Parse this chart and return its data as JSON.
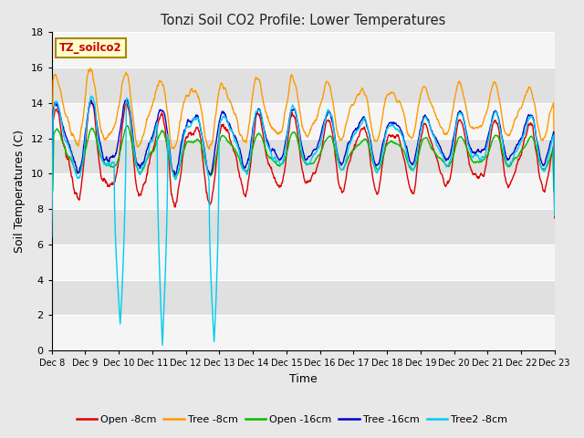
{
  "title": "Tonzi Soil CO2 Profile: Lower Temperatures",
  "xlabel": "Time",
  "ylabel": "Soil Temperatures (C)",
  "ylim": [
    0,
    18
  ],
  "yticks": [
    0,
    2,
    4,
    6,
    8,
    10,
    12,
    14,
    16,
    18
  ],
  "x_labels": [
    "Dec 8",
    "Dec 9",
    "Dec 10",
    "Dec 11",
    "Dec 12",
    "Dec 13",
    "Dec 14",
    "Dec 15",
    "Dec 16",
    "Dec 17",
    "Dec 18",
    "Dec 19",
    "Dec 20",
    "Dec 21",
    "Dec 22",
    "Dec 23"
  ],
  "watermark_text": "TZ_soilco2",
  "watermark_color": "#cc0000",
  "watermark_bg": "#ffffcc",
  "watermark_border": "#aa8800",
  "legend_entries": [
    "Open -8cm",
    "Tree -8cm",
    "Open -16cm",
    "Tree -16cm",
    "Tree2 -8cm"
  ],
  "line_colors": [
    "#dd0000",
    "#ff9900",
    "#00bb00",
    "#0000cc",
    "#00ccee"
  ],
  "background_color": "#dddddd",
  "plot_bg_light": "#f0f0f0",
  "plot_bg_dark": "#dddddd",
  "grid_color": "#ffffff"
}
